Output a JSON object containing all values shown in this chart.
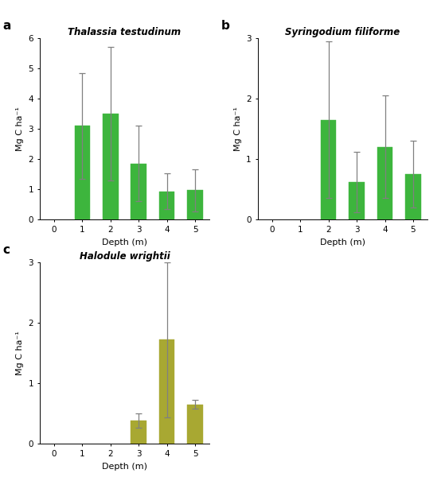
{
  "panel_a": {
    "title": "Thalassia testudinum",
    "label": "a",
    "depths": [
      1,
      2,
      3,
      4,
      5
    ],
    "values": [
      3.1,
      3.5,
      1.85,
      0.93,
      0.97
    ],
    "errors": [
      1.75,
      2.2,
      1.25,
      0.6,
      0.7
    ],
    "bar_color": "#3db53d",
    "ylim": [
      0,
      6
    ],
    "yticks": [
      0,
      1,
      2,
      3,
      4,
      5,
      6
    ],
    "ylabel": "Mg C ha⁻¹",
    "xlabel": "Depth (m)",
    "xlim": [
      -0.5,
      5.5
    ],
    "xticks": [
      0,
      1,
      2,
      3,
      4,
      5
    ]
  },
  "panel_b": {
    "title": "Syringodium filiforme",
    "label": "b",
    "depths": [
      2,
      3,
      4,
      5
    ],
    "values": [
      1.65,
      0.62,
      1.2,
      0.75
    ],
    "errors": [
      1.3,
      0.5,
      0.85,
      0.55
    ],
    "bar_color": "#3db53d",
    "ylim": [
      0,
      3
    ],
    "yticks": [
      0,
      1,
      2,
      3
    ],
    "ylabel": "Mg C ha⁻¹",
    "xlabel": "Depth (m)",
    "xlim": [
      -0.5,
      5.5
    ],
    "xticks": [
      0,
      1,
      2,
      3,
      4,
      5
    ]
  },
  "panel_c": {
    "title": "Halodule wrightii",
    "label": "c",
    "depths": [
      3,
      4,
      5
    ],
    "values": [
      0.38,
      1.72,
      0.65
    ],
    "errors": [
      0.12,
      1.28,
      0.07
    ],
    "bar_color": "#a8a832",
    "ylim": [
      0,
      3
    ],
    "yticks": [
      0,
      1,
      2,
      3
    ],
    "ylabel": "Mg C ha⁻¹",
    "xlabel": "Depth (m)",
    "xlim": [
      -0.5,
      5.5
    ],
    "xticks": [
      0,
      1,
      2,
      3,
      4,
      5
    ]
  },
  "background_color": "#ffffff",
  "bar_width": 0.55,
  "capsize": 3,
  "error_color": "#808080",
  "error_lw": 0.9,
  "title_fontsize": 8.5,
  "label_fontsize": 8,
  "tick_fontsize": 7.5,
  "panel_label_fontsize": 11
}
